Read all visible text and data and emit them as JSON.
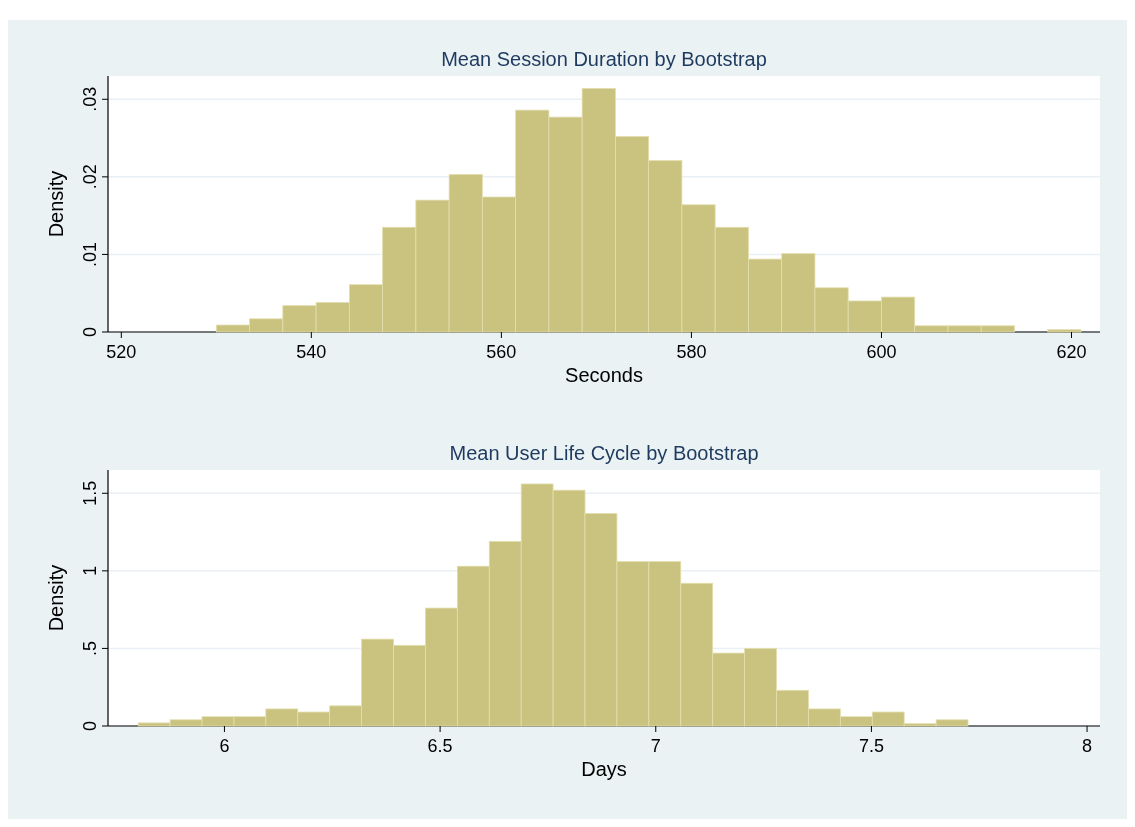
{
  "chart_data": [
    {
      "type": "histogram",
      "title": "Mean Session Duration by Bootstrap",
      "xlabel": "Seconds",
      "ylabel": "Density",
      "color": "#cac27f",
      "grid": "y",
      "bins": [
        530,
        533.5,
        537,
        540.5,
        544,
        547.5,
        551,
        554.5,
        558,
        561.5,
        565,
        568.5,
        572,
        575.5,
        579,
        582.5,
        586,
        589.5,
        593,
        596.5,
        600,
        603.5,
        607,
        610.5,
        614,
        617.5,
        621
      ],
      "values": [
        0.0009,
        0.0017,
        0.0034,
        0.0038,
        0.0061,
        0.0135,
        0.017,
        0.0203,
        0.0174,
        0.0286,
        0.0277,
        0.0314,
        0.0252,
        0.0221,
        0.0164,
        0.0135,
        0.0094,
        0.0101,
        0.0057,
        0.004,
        0.0045,
        0.0008,
        0.0008,
        0.0008,
        0,
        0.0003
      ],
      "xlim": [
        518.6,
        623
      ],
      "xticks": [
        520,
        540,
        560,
        580,
        600,
        620
      ],
      "ylim": [
        0,
        0.033
      ],
      "yticks": [
        0,
        {
          "value": 0.01,
          "label": ".01"
        },
        {
          "value": 0.02,
          "label": ".02"
        },
        {
          "value": 0.03,
          "label": ".03"
        }
      ]
    },
    {
      "type": "histogram",
      "title": "Mean User Life Cycle by Bootstrap",
      "xlabel": "Days",
      "ylabel": "Density",
      "color": "#cac27f",
      "grid": "y",
      "bins": [
        5.8,
        5.874,
        5.948,
        6.022,
        6.096,
        6.17,
        6.244,
        6.318,
        6.392,
        6.466,
        6.54,
        6.614,
        6.688,
        6.762,
        6.836,
        6.91,
        6.984,
        7.058,
        7.132,
        7.206,
        7.28,
        7.354,
        7.428,
        7.502,
        7.576,
        7.65,
        7.724
      ],
      "values": [
        0.02,
        0.04,
        0.06,
        0.06,
        0.11,
        0.09,
        0.13,
        0.56,
        0.52,
        0.76,
        1.03,
        1.19,
        1.56,
        1.52,
        1.37,
        1.06,
        1.06,
        0.92,
        0.47,
        0.5,
        0.23,
        0.11,
        0.06,
        0.09,
        0.015,
        0.04
      ],
      "xlim": [
        5.73,
        8.03
      ],
      "xticks": [
        6,
        6.5,
        7,
        7.5,
        8
      ],
      "ylim": [
        0,
        1.65
      ],
      "yticks": [
        0,
        {
          "value": 0.5,
          "label": ".5"
        },
        1,
        1.5
      ]
    }
  ]
}
